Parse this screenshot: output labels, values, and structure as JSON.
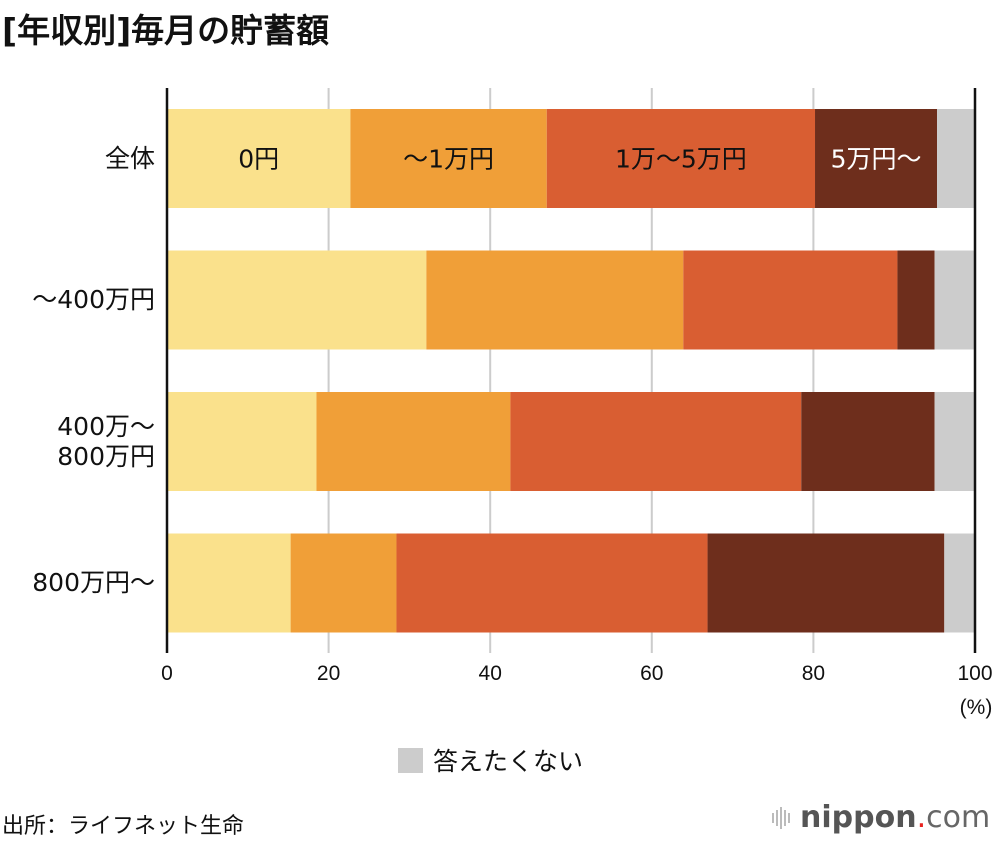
{
  "title": "[年収別]毎月の貯蓄額",
  "source": "出所：ライフネット生命",
  "logo": {
    "brand": "nippon",
    "dot": ".",
    "tld": "com",
    "icon": "sound-bars-icon"
  },
  "chart_data": {
    "type": "bar",
    "orientation": "horizontal",
    "stacked": true,
    "title": "[年収別]毎月の貯蓄額",
    "xlabel": "(%)",
    "ylabel": "",
    "xlim": [
      0,
      100
    ],
    "xticks": [
      "0",
      "20",
      "40",
      "60",
      "80",
      "100"
    ],
    "grid": true,
    "categories": [
      "全体",
      "～400万円",
      "400万～\n800万円",
      "800万円～"
    ],
    "series": [
      {
        "name": "0円",
        "color": "#fae18c",
        "label_color": "#111111",
        "values": [
          22.7,
          32.1,
          18.5,
          15.3
        ]
      },
      {
        "name": "～1万円",
        "color": "#f09f38",
        "label_color": "#111111",
        "values": [
          24.3,
          31.8,
          24.0,
          13.1
        ]
      },
      {
        "name": "1万～5万円",
        "color": "#d95e32",
        "label_color": "#111111",
        "values": [
          33.2,
          26.5,
          36.0,
          38.5
        ]
      },
      {
        "name": "5万円～",
        "color": "#6e2e1c",
        "label_color": "#ffffff",
        "values": [
          15.1,
          4.6,
          16.5,
          29.3
        ]
      },
      {
        "name": "答えたくない",
        "color": "#cccccc",
        "label_color": "#111111",
        "values": [
          4.7,
          5.0,
          5.0,
          3.8
        ]
      }
    ],
    "inline_labels_on_category": "全体",
    "legend": {
      "entries": [
        "答えたくない"
      ],
      "placement": "bottom-center"
    }
  }
}
